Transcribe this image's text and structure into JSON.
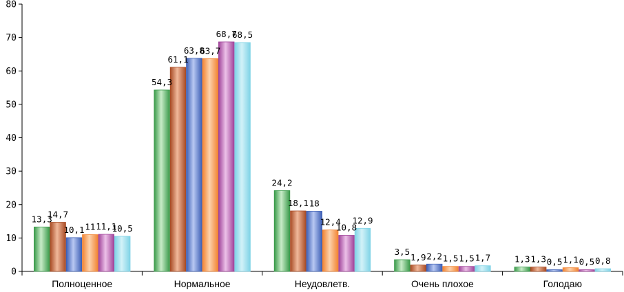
{
  "chart_data": {
    "type": "bar",
    "title": "",
    "xlabel": "",
    "ylabel": "",
    "ylim": [
      0,
      80
    ],
    "yticks": [
      0,
      10,
      20,
      30,
      40,
      50,
      60,
      70,
      80
    ],
    "grid": false,
    "legend": "none",
    "categories": [
      "Полноценное",
      "Нормальное",
      "Неудовлетв.",
      "Очень плохое",
      "Голодаю"
    ],
    "series": [
      {
        "values": [
          13.3,
          54.3,
          24.2,
          3.5,
          1.3
        ],
        "labels": [
          "13,3",
          "54,3",
          "24,2",
          "3,5",
          "1,3"
        ],
        "color": "#3a9a4a",
        "light": "#c8ecc8"
      },
      {
        "values": [
          14.7,
          61.1,
          18.1,
          1.9,
          1.3
        ],
        "labels": [
          "14,7",
          "61,1",
          "18,1",
          "1,9",
          "1,3"
        ],
        "color": "#a84b25",
        "light": "#f0b89a"
      },
      {
        "values": [
          10.1,
          63.8,
          18,
          2.2,
          0.5
        ],
        "labels": [
          "10,1",
          "63,8",
          "18",
          "2,2",
          "0,5"
        ],
        "color": "#3d5fb5",
        "light": "#b8c8f2"
      },
      {
        "values": [
          11,
          63.7,
          12.4,
          1.5,
          1.1
        ],
        "labels": [
          "11",
          "63,7",
          "12,4",
          "1,5",
          "1,1"
        ],
        "color": "#f28433",
        "light": "#fcd2ac"
      },
      {
        "values": [
          11.1,
          68.7,
          10.8,
          1.5,
          0.5
        ],
        "labels": [
          "11,1",
          "68,7",
          "10,8",
          "1,5",
          "0,5"
        ],
        "color": "#a0449a",
        "light": "#ecc0e8"
      },
      {
        "values": [
          10.5,
          68.5,
          12.9,
          1.7,
          0.8
        ],
        "labels": [
          "10,5",
          "68,5",
          "12,9",
          "1,7",
          "0,8"
        ],
        "color": "#7fd3e6",
        "light": "#d2f2f8"
      }
    ]
  }
}
